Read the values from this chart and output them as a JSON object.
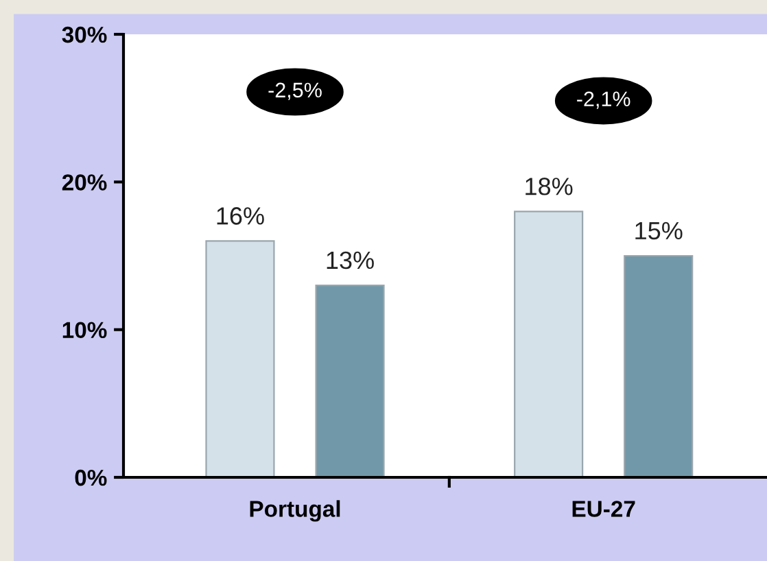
{
  "chart_data": {
    "type": "bar",
    "categories": [
      "Portugal",
      "EU-27"
    ],
    "series": [
      {
        "color": "#d5e1e8",
        "values": [
          16,
          18
        ],
        "value_labels": [
          "16%",
          "18%"
        ]
      },
      {
        "color": "#7198a9",
        "values": [
          13,
          15
        ],
        "value_labels": [
          "13%",
          "15%"
        ]
      }
    ],
    "ylim": [
      0,
      30
    ],
    "yticks": [
      {
        "value": 0,
        "label": "0%"
      },
      {
        "value": 10,
        "label": "10%"
      },
      {
        "value": 20,
        "label": "20%"
      },
      {
        "value": 30,
        "label": "30%"
      }
    ],
    "annotations": [
      "-2,5%",
      "-2,1%"
    ],
    "grid": false,
    "legend": false
  }
}
